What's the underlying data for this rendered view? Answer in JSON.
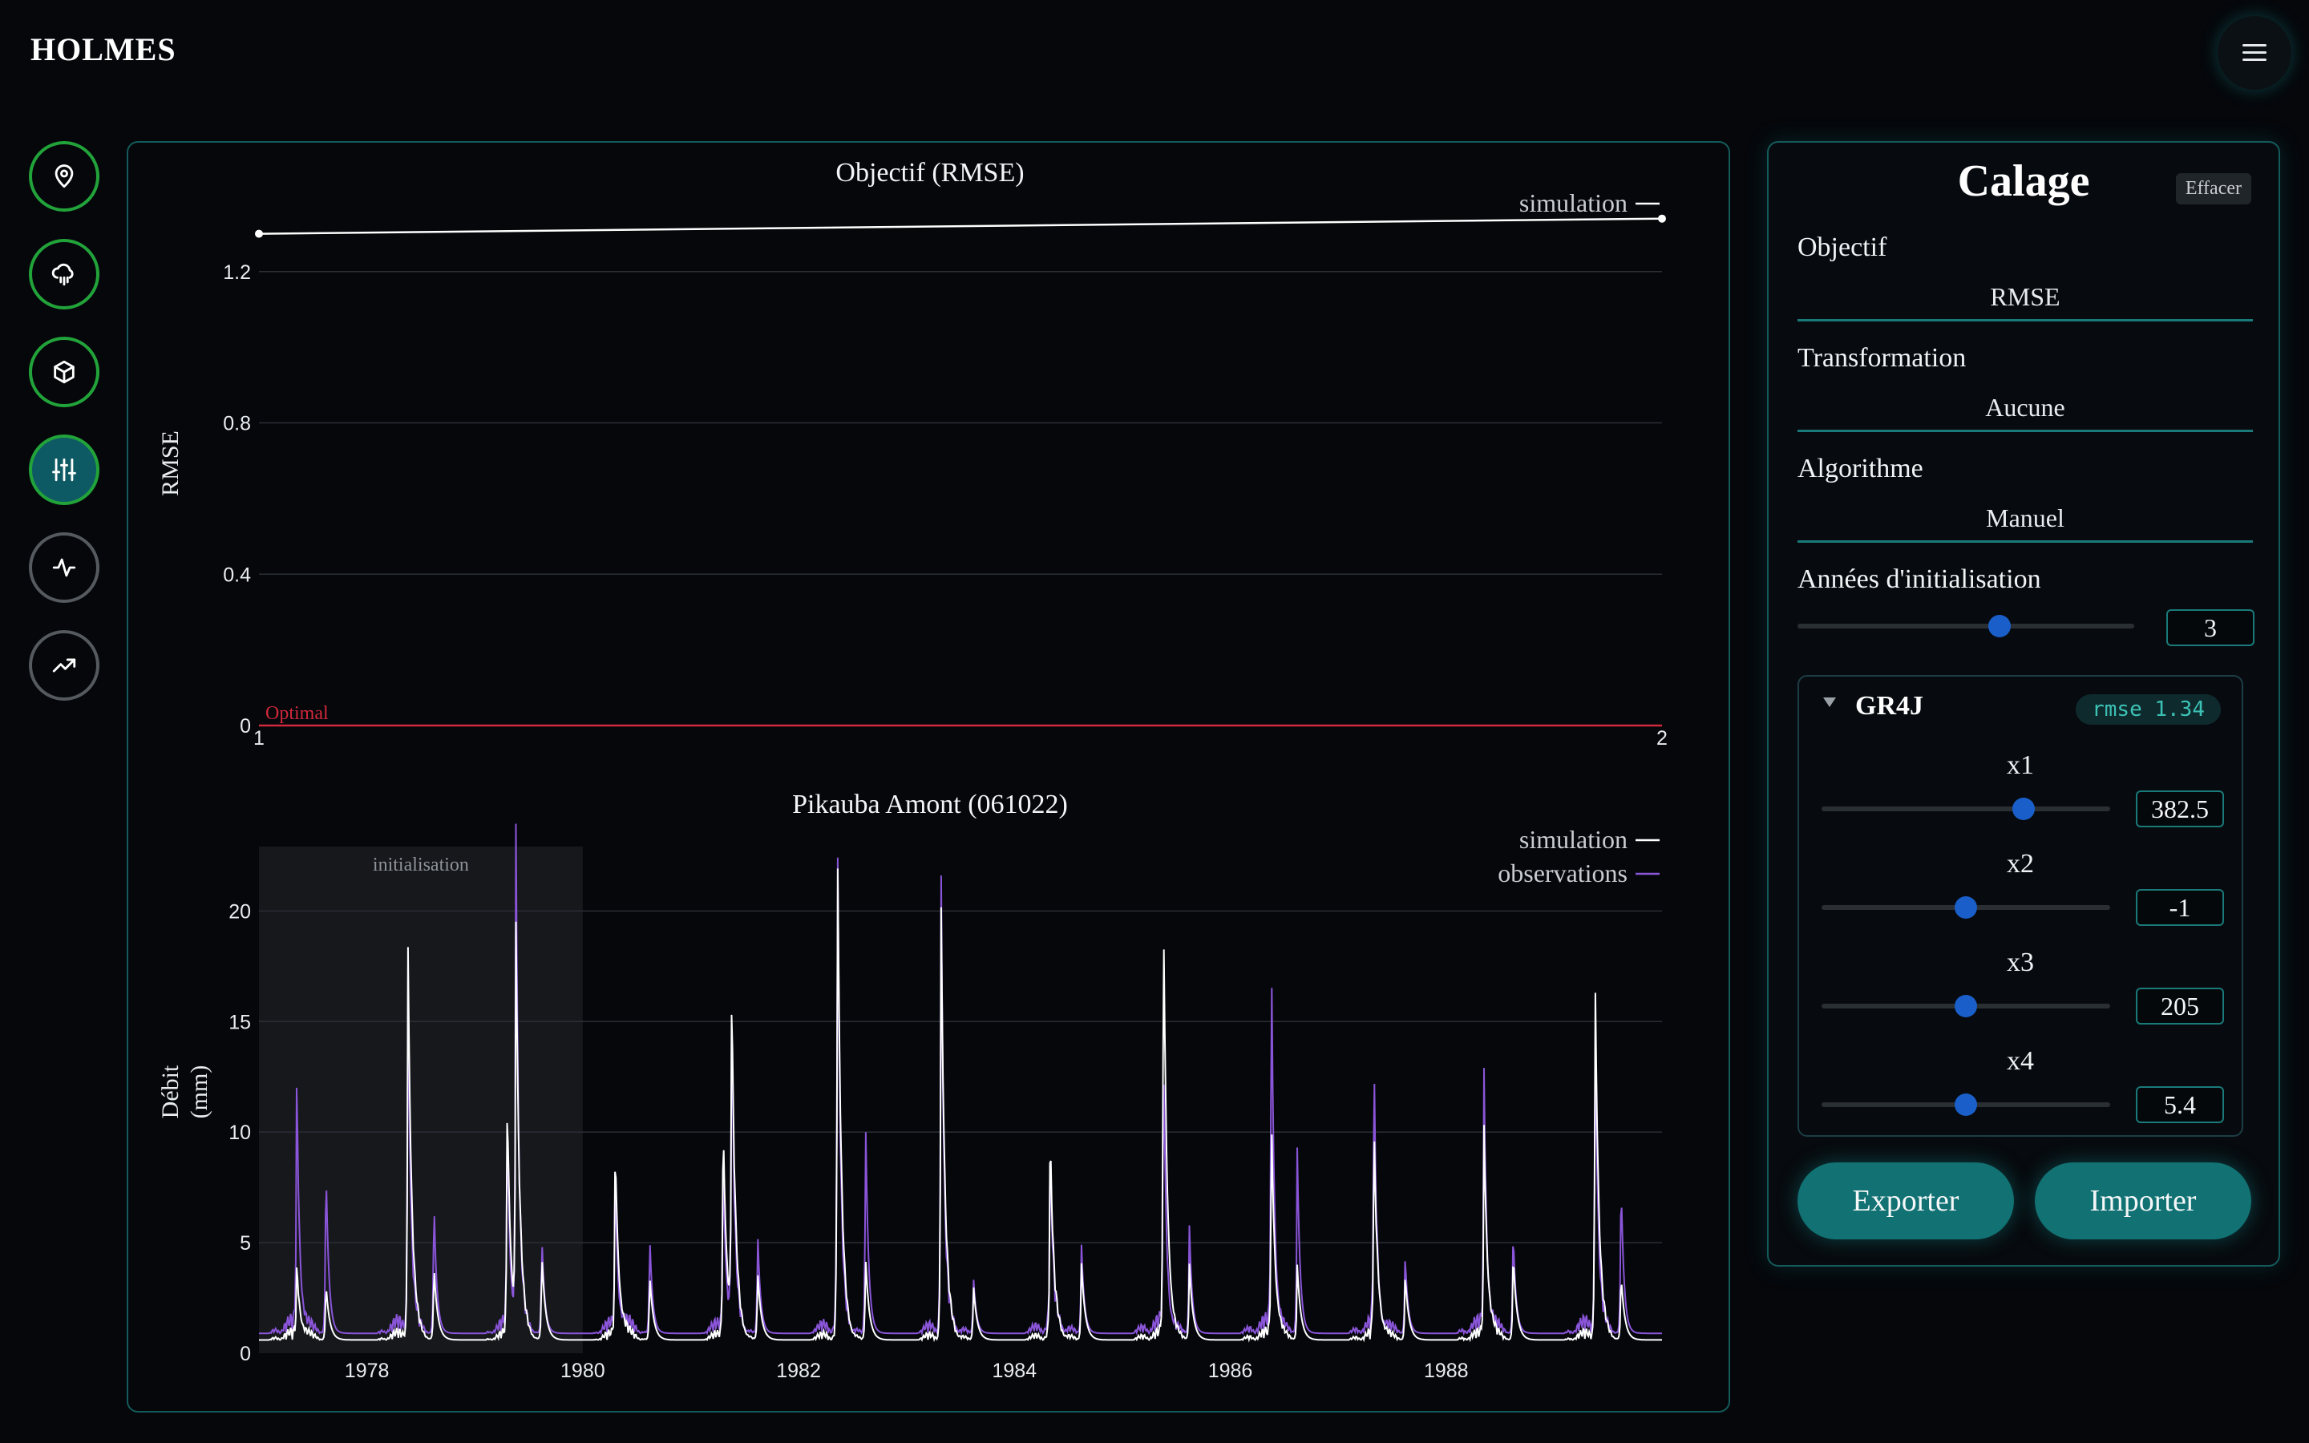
{
  "app": {
    "title": "HOLMES"
  },
  "nav": {
    "items": [
      {
        "icon": "map-pin-icon",
        "state": "done"
      },
      {
        "icon": "cloud-rain-icon",
        "state": "done"
      },
      {
        "icon": "cube-icon",
        "state": "done"
      },
      {
        "icon": "sliders-icon",
        "state": "active"
      },
      {
        "icon": "activity-icon",
        "state": "idle"
      },
      {
        "icon": "trending-up-icon",
        "state": "idle"
      }
    ]
  },
  "chart_data": [
    {
      "type": "line",
      "title": "Objectif (RMSE)",
      "ylabel": "RMSE",
      "xlabel": "",
      "x": [
        1,
        2
      ],
      "xlim": [
        1,
        2
      ],
      "ylim": [
        0,
        1.35
      ],
      "yticks": [
        "0",
        "0.4",
        "0.8",
        "1.2"
      ],
      "xticks": [
        "1",
        "2"
      ],
      "series": [
        {
          "name": "simulation",
          "values": [
            1.3,
            1.34
          ],
          "color": "#ffffff"
        }
      ],
      "reference_line": {
        "label": "Optimal",
        "value": 0,
        "color": "#d0283c"
      },
      "grid": true,
      "legend": "top-right"
    },
    {
      "type": "line",
      "title": "Pikauba Amont (061022)",
      "ylabel": "Débit (mm)",
      "ylabel_lines": [
        "Débit",
        "(mm)"
      ],
      "xlabel": "",
      "xlim": [
        1977.0,
        1990.0
      ],
      "ylim": [
        0,
        24
      ],
      "yticks": [
        "0",
        "5",
        "10",
        "15",
        "20"
      ],
      "xticks": [
        "1978",
        "1980",
        "1982",
        "1984",
        "1986",
        "1988"
      ],
      "initialisation_band": {
        "label": "initialisation",
        "from": 1977.0,
        "to": 1980.0
      },
      "peaks": [
        {
          "t": 1977.35,
          "sim": 3.2,
          "obs": 11.6
        },
        {
          "t": 1977.62,
          "sim": 2.6,
          "obs": 8.0
        },
        {
          "t": 1978.38,
          "sim": 18.4,
          "obs": 16.8
        },
        {
          "t": 1978.62,
          "sim": 3.5,
          "obs": 6.4
        },
        {
          "t": 1979.3,
          "sim": 10.8,
          "obs": 9.5
        },
        {
          "t": 1979.38,
          "sim": 18.2,
          "obs": 23.0
        },
        {
          "t": 1979.62,
          "sim": 4.0,
          "obs": 4.6
        },
        {
          "t": 1980.3,
          "sim": 8.9,
          "obs": 7.2
        },
        {
          "t": 1980.62,
          "sim": 3.0,
          "obs": 4.6
        },
        {
          "t": 1981.3,
          "sim": 10.2,
          "obs": 8.3
        },
        {
          "t": 1981.38,
          "sim": 15.0,
          "obs": 14.5
        },
        {
          "t": 1981.62,
          "sim": 3.2,
          "obs": 4.8
        },
        {
          "t": 1982.36,
          "sim": 22.7,
          "obs": 23.2
        },
        {
          "t": 1982.62,
          "sim": 3.8,
          "obs": 10.0
        },
        {
          "t": 1983.32,
          "sim": 20.0,
          "obs": 21.2
        },
        {
          "t": 1983.62,
          "sim": 2.5,
          "obs": 2.6
        },
        {
          "t": 1984.33,
          "sim": 9.3,
          "obs": 8.5
        },
        {
          "t": 1984.62,
          "sim": 3.6,
          "obs": 4.2
        },
        {
          "t": 1985.38,
          "sim": 20.4,
          "obs": 13.4
        },
        {
          "t": 1985.62,
          "sim": 3.5,
          "obs": 5.0
        },
        {
          "t": 1986.38,
          "sim": 10.2,
          "obs": 17.8
        },
        {
          "t": 1986.62,
          "sim": 3.4,
          "obs": 8.4
        },
        {
          "t": 1987.33,
          "sim": 9.8,
          "obs": 12.6
        },
        {
          "t": 1987.62,
          "sim": 3.0,
          "obs": 3.6
        },
        {
          "t": 1988.35,
          "sim": 9.6,
          "obs": 11.8
        },
        {
          "t": 1988.62,
          "sim": 4.0,
          "obs": 4.8
        },
        {
          "t": 1989.38,
          "sim": 16.8,
          "obs": 15.0
        },
        {
          "t": 1989.62,
          "sim": 3.0,
          "obs": 7.2
        }
      ],
      "series": [
        {
          "name": "simulation",
          "color": "#ffffff"
        },
        {
          "name": "observations",
          "color": "#8a55d8"
        }
      ],
      "grid": true,
      "legend": "top-right"
    }
  ],
  "calage": {
    "title": "Calage",
    "clear_label": "Effacer",
    "objective_label": "Objectif",
    "objective_value": "RMSE",
    "transformation_label": "Transformation",
    "transformation_value": "Aucune",
    "algorithm_label": "Algorithme",
    "algorithm_value": "Manuel",
    "init_years_label": "Années d'initialisation",
    "init_years_value": "3",
    "init_years_fraction": 0.6,
    "model": {
      "name": "GR4J",
      "score": "rmse 1.34",
      "params": [
        {
          "label": "x1",
          "value": "382.5",
          "fraction": 0.7
        },
        {
          "label": "x2",
          "value": "-1",
          "fraction": 0.5
        },
        {
          "label": "x3",
          "value": "205",
          "fraction": 0.5
        },
        {
          "label": "x4",
          "value": "5.4",
          "fraction": 0.5
        }
      ]
    },
    "export_label": "Exporter",
    "import_label": "Importer"
  }
}
